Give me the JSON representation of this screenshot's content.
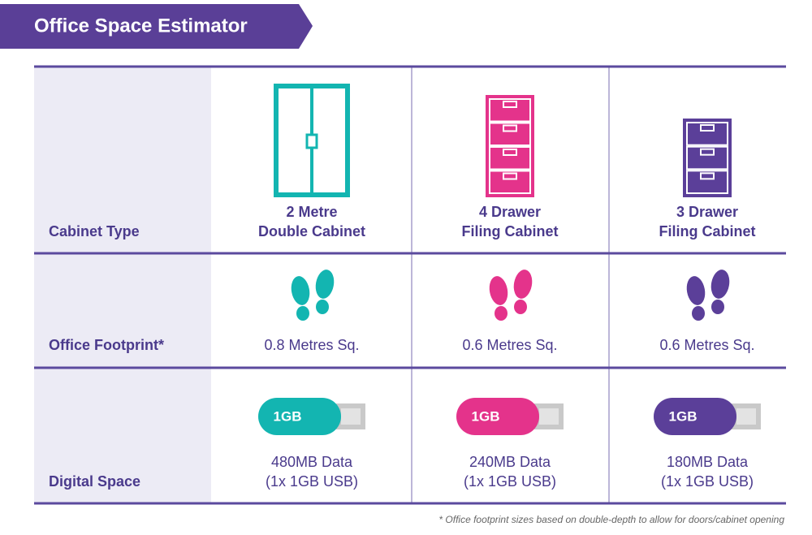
{
  "header": {
    "title": "Office Space Estimator"
  },
  "table": {
    "row_headers": [
      "Cabinet Type",
      "Office Footprint*",
      "Digital Space"
    ],
    "columns": [
      {
        "cabinet": [
          "2 Metre",
          "Double Cabinet"
        ],
        "footprint": "0.8 Metres Sq.",
        "usb_label": "1GB",
        "digital": [
          "480MB Data",
          "(1x 1GB USB)"
        ]
      },
      {
        "cabinet": [
          "4 Drawer",
          "Filing Cabinet"
        ],
        "footprint": "0.6 Metres Sq.",
        "usb_label": "1GB",
        "digital": [
          "240MB Data",
          "(1x 1GB USB)"
        ]
      },
      {
        "cabinet": [
          "3 Drawer",
          "Filing Cabinet"
        ],
        "footprint": "0.6 Metres Sq.",
        "usb_label": "1GB",
        "digital": [
          "180MB Data",
          "(1x 1GB USB)"
        ]
      }
    ]
  },
  "footnote": "* Office footprint sizes based on double-depth to allow for doors/cabinet opening"
}
